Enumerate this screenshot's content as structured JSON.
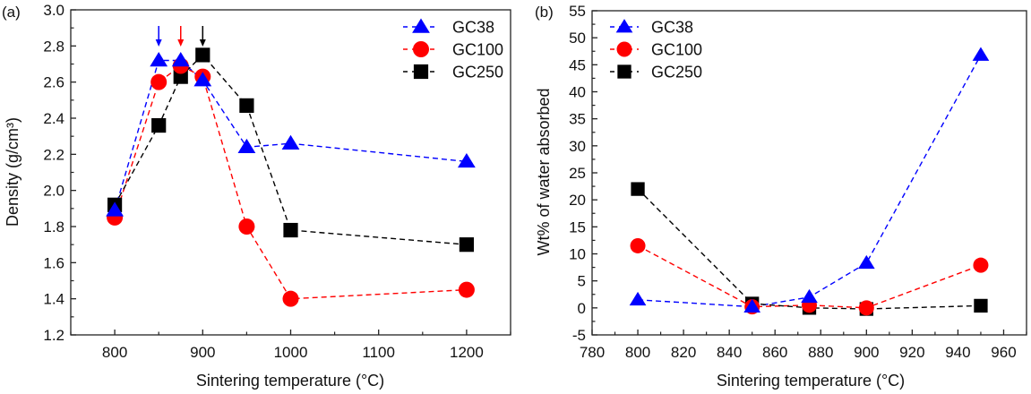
{
  "chart_data": [
    {
      "type": "line",
      "panel_label": "(a)",
      "title": "",
      "xlabel": "Sintering temperature (°C)",
      "ylabel": "Density (g/cm³)",
      "xlim": [
        750,
        1250
      ],
      "ylim": [
        1.2,
        3.0
      ],
      "xticks": [
        800,
        900,
        1000,
        1100,
        1200
      ],
      "yticks": [
        1.2,
        1.4,
        1.6,
        1.8,
        2.0,
        2.2,
        2.4,
        2.6,
        2.8,
        3.0
      ],
      "legend_position": "top-right",
      "grid": false,
      "series": [
        {
          "name": "GC38",
          "color": "#0000ff",
          "marker": "triangle",
          "x": [
            800,
            850,
            875,
            900,
            950,
            1000,
            1200
          ],
          "y": [
            1.89,
            2.72,
            2.72,
            2.61,
            2.24,
            2.26,
            2.16
          ]
        },
        {
          "name": "GC100",
          "color": "#ff0000",
          "marker": "circle",
          "x": [
            800,
            850,
            875,
            900,
            950,
            1000,
            1200
          ],
          "y": [
            1.85,
            2.6,
            2.69,
            2.63,
            1.8,
            1.4,
            1.45
          ]
        },
        {
          "name": "GC250",
          "color": "#000000",
          "marker": "square",
          "x": [
            800,
            850,
            875,
            900,
            950,
            1000,
            1200
          ],
          "y": [
            1.92,
            2.36,
            2.63,
            2.75,
            2.47,
            1.78,
            1.7
          ]
        }
      ],
      "annotations": [
        {
          "type": "arrow",
          "x": 850,
          "color": "#0000ff",
          "label": "GC38 peak"
        },
        {
          "type": "arrow",
          "x": 875,
          "color": "#ff0000",
          "label": "GC100 peak"
        },
        {
          "type": "arrow",
          "x": 900,
          "color": "#000000",
          "label": "GC250 peak"
        }
      ]
    },
    {
      "type": "line",
      "panel_label": "(b)",
      "title": "",
      "xlabel": "Sintering temperature (°C)",
      "ylabel": "Wt% of water absorbed",
      "xlim": [
        780,
        970
      ],
      "ylim": [
        -5,
        55
      ],
      "xticks": [
        780,
        800,
        820,
        840,
        860,
        880,
        900,
        920,
        940,
        960
      ],
      "yticks": [
        -5,
        0,
        5,
        10,
        15,
        20,
        25,
        30,
        35,
        40,
        45,
        50,
        55
      ],
      "legend_position": "top-left",
      "grid": false,
      "series": [
        {
          "name": "GC38",
          "color": "#0000ff",
          "marker": "triangle",
          "x": [
            800,
            850,
            875,
            900,
            950
          ],
          "y": [
            1.5,
            0.2,
            2.0,
            8.3,
            46.8
          ]
        },
        {
          "name": "GC100",
          "color": "#ff0000",
          "marker": "circle",
          "x": [
            800,
            850,
            875,
            900,
            950
          ],
          "y": [
            11.5,
            0.2,
            0.5,
            0.0,
            7.9
          ]
        },
        {
          "name": "GC250",
          "color": "#000000",
          "marker": "square",
          "x": [
            800,
            850,
            875,
            900,
            950
          ],
          "y": [
            22.0,
            0.8,
            0.0,
            -0.2,
            0.4
          ]
        }
      ]
    }
  ]
}
